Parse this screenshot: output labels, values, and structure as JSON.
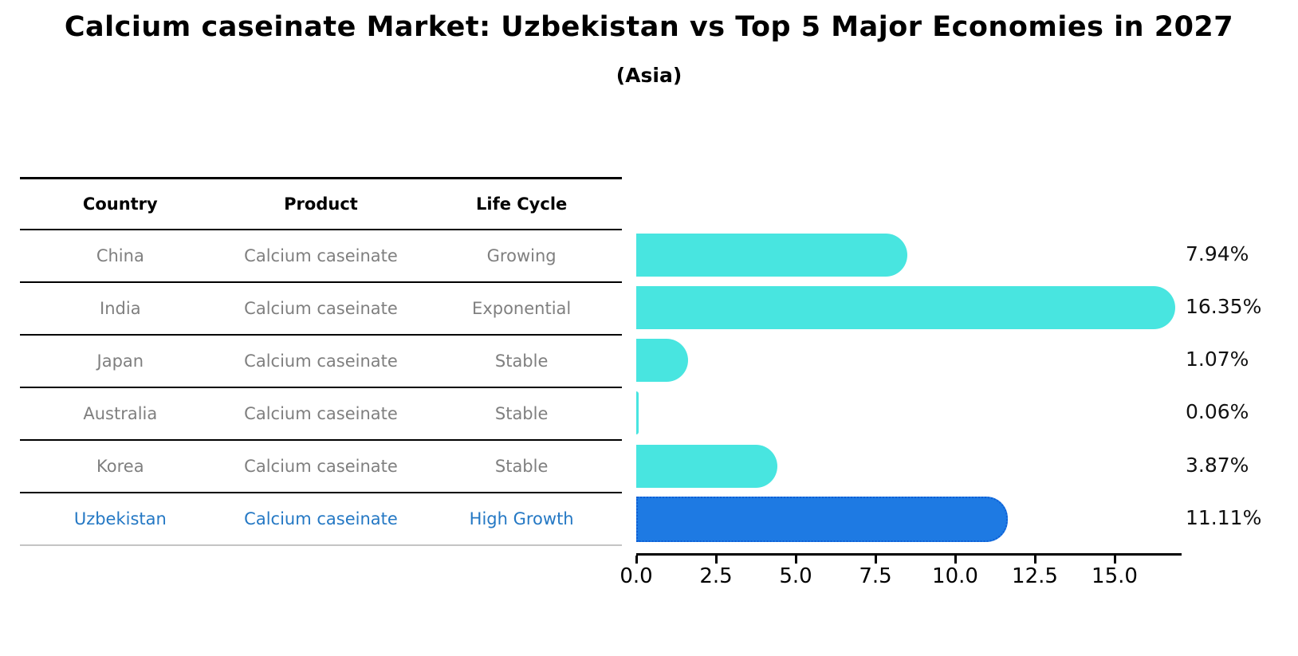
{
  "title": "Calcium caseinate Market: Uzbekistan vs Top 5 Major Economies in 2027",
  "subtitle": "(Asia)",
  "table": {
    "headers": [
      "Country",
      "Product",
      "Life Cycle"
    ],
    "rows": [
      {
        "country": "China",
        "product": "Calcium caseinate",
        "life_cycle": "Growing",
        "highlight": false
      },
      {
        "country": "India",
        "product": "Calcium caseinate",
        "life_cycle": "Exponential",
        "highlight": false
      },
      {
        "country": "Japan",
        "product": "Calcium caseinate",
        "life_cycle": "Stable",
        "highlight": false
      },
      {
        "country": "Australia",
        "product": "Calcium caseinate",
        "life_cycle": "Stable",
        "highlight": false
      },
      {
        "country": "Korea",
        "product": "Calcium caseinate",
        "life_cycle": "Stable",
        "highlight": false
      },
      {
        "country": "Uzbekistan",
        "product": "Calcium caseinate",
        "life_cycle": "High Growth",
        "highlight": true
      }
    ]
  },
  "chart_data": {
    "type": "bar",
    "orientation": "horizontal",
    "title": "Calcium caseinate Market: Uzbekistan vs Top 5 Major Economies in 2027",
    "subtitle": "(Asia)",
    "categories": [
      "China",
      "India",
      "Japan",
      "Australia",
      "Korea",
      "Uzbekistan"
    ],
    "values": [
      7.94,
      16.35,
      1.07,
      0.06,
      3.87,
      11.11
    ],
    "labels": [
      "7.94%",
      "16.35%",
      "1.07%",
      "0.06%",
      "3.87%",
      "11.11%"
    ],
    "x_tick_values": [
      0.0,
      2.5,
      5.0,
      7.5,
      10.0,
      12.5,
      15.0
    ],
    "x_ticks": [
      "0.0",
      "2.5",
      "5.0",
      "7.5",
      "10.0",
      "12.5",
      "15.0"
    ],
    "xlim": [
      0,
      17.1
    ],
    "grid": false,
    "legend": false,
    "highlight_index": 5,
    "bar_color": "#48e5e0",
    "highlight_bar_color": "#1e7ae3",
    "highlight_text_color": "#2478c4",
    "row_text_color": "#7f7f7f"
  }
}
